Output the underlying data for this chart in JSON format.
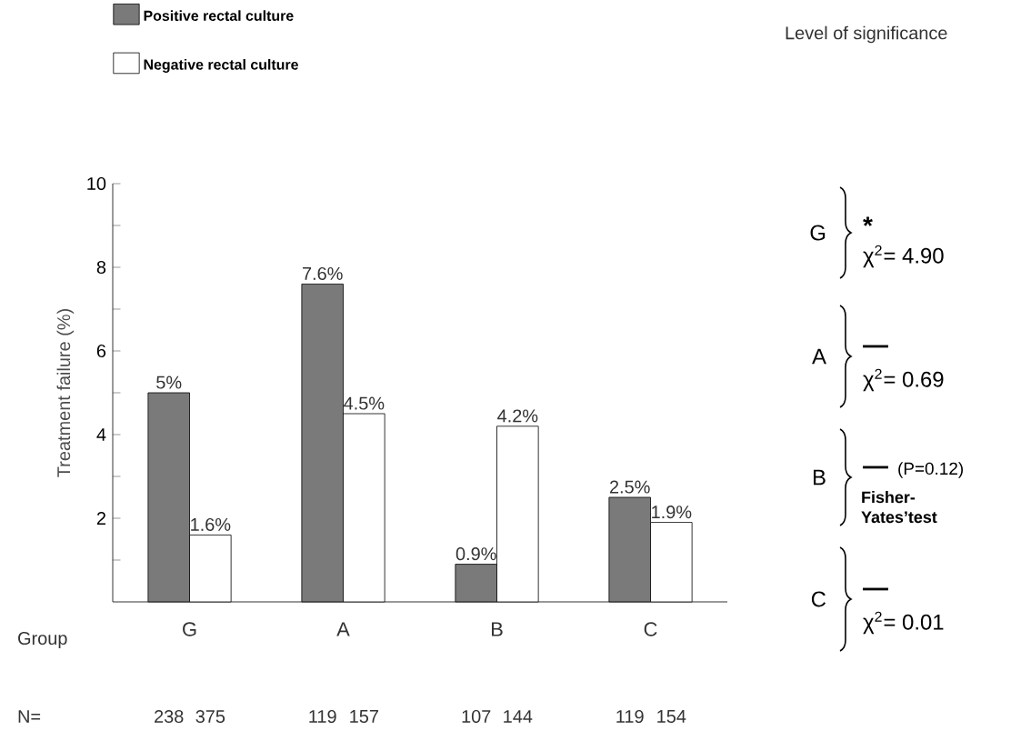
{
  "chart_data": {
    "type": "bar",
    "ylabel": "Treatment failure (%)",
    "categories": [
      "G",
      "A",
      "B",
      "C"
    ],
    "series": [
      {
        "name": "Positive rectal culture",
        "color": "#7a7a7a",
        "values": [
          5,
          7.6,
          0.9,
          2.5
        ],
        "value_labels": [
          "5%",
          "7.6%",
          "0.9%",
          "2.5%"
        ]
      },
      {
        "name": "Negative rectal culture",
        "color": "#ffffff",
        "values": [
          1.6,
          4.5,
          4.2,
          1.9
        ],
        "value_labels": [
          "1.6%",
          "4.5%",
          "4.2%",
          "1.9%"
        ]
      }
    ],
    "ylim": [
      0,
      10
    ],
    "yticks": [
      {
        "value": 1,
        "label": null
      },
      2,
      {
        "value": 3,
        "label": null
      },
      4,
      {
        "value": 5,
        "label": null
      },
      6,
      {
        "value": 7,
        "label": null
      },
      8,
      {
        "value": 9,
        "label": null
      },
      10
    ],
    "legend": "top left",
    "grid": false,
    "annotations": [
      "Level of significance",
      "Group",
      "N=",
      "238",
      "375",
      "119",
      "157",
      "107",
      "144",
      "119",
      "154",
      "G",
      "*",
      "χ$^{2}$= 4.90",
      "A",
      "—",
      "χ$^{2}$= 0.69",
      "B",
      "—",
      "(P=0.12)",
      "Fisher-Yates’test",
      "C",
      "—",
      "χ$^{2}$= 0.01"
    ]
  }
}
